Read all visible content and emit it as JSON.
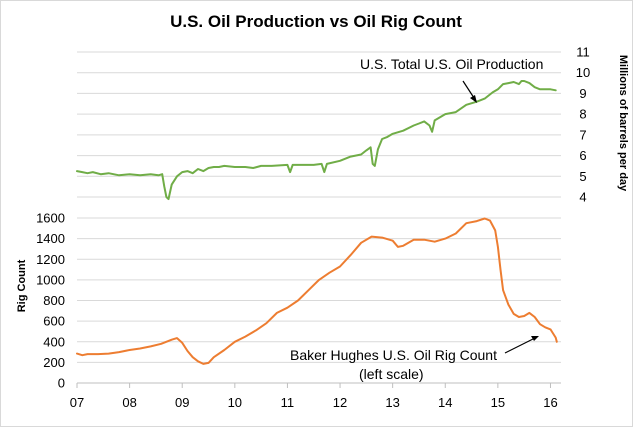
{
  "chart_data": {
    "type": "line",
    "title": "U.S. Oil Production vs Oil Rig Count",
    "x_tick_labels": [
      "07",
      "08",
      "09",
      "10",
      "11",
      "12",
      "13",
      "14",
      "15",
      "16"
    ],
    "x_range": [
      2007,
      2016.2
    ],
    "left_axis": {
      "label": "Rig Count",
      "range": [
        0,
        1600
      ],
      "ticks": [
        0,
        200,
        400,
        600,
        800,
        1000,
        1200,
        1400,
        1600
      ]
    },
    "right_axis": {
      "label": "Millions of barrels per day",
      "range": [
        4,
        11
      ],
      "ticks": [
        4,
        5,
        6,
        7,
        8,
        9,
        10,
        11
      ]
    },
    "series": [
      {
        "name": "U.S. Total U.S. Oil Production",
        "axis": "right",
        "color": "#70ad47",
        "points": [
          [
            2007.0,
            5.25
          ],
          [
            2007.1,
            5.2
          ],
          [
            2007.2,
            5.15
          ],
          [
            2007.3,
            5.2
          ],
          [
            2007.45,
            5.1
          ],
          [
            2007.6,
            5.15
          ],
          [
            2007.8,
            5.05
          ],
          [
            2008.0,
            5.1
          ],
          [
            2008.2,
            5.05
          ],
          [
            2008.4,
            5.1
          ],
          [
            2008.55,
            5.05
          ],
          [
            2008.62,
            5.1
          ],
          [
            2008.66,
            4.5
          ],
          [
            2008.7,
            4.0
          ],
          [
            2008.74,
            3.9
          ],
          [
            2008.8,
            4.6
          ],
          [
            2008.9,
            5.0
          ],
          [
            2009.0,
            5.2
          ],
          [
            2009.1,
            5.25
          ],
          [
            2009.2,
            5.15
          ],
          [
            2009.3,
            5.35
          ],
          [
            2009.4,
            5.25
          ],
          [
            2009.5,
            5.4
          ],
          [
            2009.6,
            5.45
          ],
          [
            2009.7,
            5.45
          ],
          [
            2009.8,
            5.5
          ],
          [
            2010.0,
            5.45
          ],
          [
            2010.2,
            5.45
          ],
          [
            2010.35,
            5.4
          ],
          [
            2010.5,
            5.5
          ],
          [
            2010.7,
            5.5
          ],
          [
            2011.0,
            5.55
          ],
          [
            2011.05,
            5.2
          ],
          [
            2011.1,
            5.55
          ],
          [
            2011.3,
            5.55
          ],
          [
            2011.5,
            5.55
          ],
          [
            2011.65,
            5.6
          ],
          [
            2011.7,
            5.2
          ],
          [
            2011.75,
            5.6
          ],
          [
            2012.0,
            5.75
          ],
          [
            2012.2,
            5.95
          ],
          [
            2012.4,
            6.05
          ],
          [
            2012.5,
            6.25
          ],
          [
            2012.58,
            6.4
          ],
          [
            2012.62,
            5.6
          ],
          [
            2012.66,
            5.5
          ],
          [
            2012.72,
            6.3
          ],
          [
            2012.8,
            6.8
          ],
          [
            2012.9,
            6.9
          ],
          [
            2013.0,
            7.05
          ],
          [
            2013.2,
            7.2
          ],
          [
            2013.4,
            7.45
          ],
          [
            2013.5,
            7.55
          ],
          [
            2013.6,
            7.65
          ],
          [
            2013.7,
            7.45
          ],
          [
            2013.75,
            7.15
          ],
          [
            2013.8,
            7.7
          ],
          [
            2014.0,
            8.0
          ],
          [
            2014.2,
            8.1
          ],
          [
            2014.4,
            8.45
          ],
          [
            2014.6,
            8.6
          ],
          [
            2014.75,
            8.75
          ],
          [
            2014.9,
            9.05
          ],
          [
            2015.0,
            9.2
          ],
          [
            2015.1,
            9.45
          ],
          [
            2015.2,
            9.5
          ],
          [
            2015.3,
            9.55
          ],
          [
            2015.4,
            9.45
          ],
          [
            2015.45,
            9.6
          ],
          [
            2015.5,
            9.6
          ],
          [
            2015.6,
            9.5
          ],
          [
            2015.7,
            9.3
          ],
          [
            2015.8,
            9.2
          ],
          [
            2016.0,
            9.2
          ],
          [
            2016.1,
            9.15
          ]
        ]
      },
      {
        "name": "Baker Hughes U.S. Oil Rig Count (left scale)",
        "axis": "left",
        "color": "#ed7d31",
        "points": [
          [
            2007.0,
            285
          ],
          [
            2007.1,
            270
          ],
          [
            2007.2,
            280
          ],
          [
            2007.4,
            280
          ],
          [
            2007.6,
            285
          ],
          [
            2007.8,
            300
          ],
          [
            2008.0,
            320
          ],
          [
            2008.2,
            335
          ],
          [
            2008.4,
            355
          ],
          [
            2008.6,
            380
          ],
          [
            2008.8,
            420
          ],
          [
            2008.9,
            435
          ],
          [
            2009.0,
            390
          ],
          [
            2009.1,
            310
          ],
          [
            2009.2,
            250
          ],
          [
            2009.3,
            210
          ],
          [
            2009.4,
            185
          ],
          [
            2009.5,
            195
          ],
          [
            2009.6,
            250
          ],
          [
            2009.8,
            320
          ],
          [
            2010.0,
            400
          ],
          [
            2010.2,
            450
          ],
          [
            2010.4,
            510
          ],
          [
            2010.6,
            580
          ],
          [
            2010.8,
            680
          ],
          [
            2011.0,
            730
          ],
          [
            2011.2,
            800
          ],
          [
            2011.4,
            900
          ],
          [
            2011.6,
            1000
          ],
          [
            2011.8,
            1070
          ],
          [
            2012.0,
            1130
          ],
          [
            2012.2,
            1240
          ],
          [
            2012.4,
            1360
          ],
          [
            2012.6,
            1420
          ],
          [
            2012.8,
            1410
          ],
          [
            2013.0,
            1380
          ],
          [
            2013.1,
            1320
          ],
          [
            2013.2,
            1330
          ],
          [
            2013.4,
            1390
          ],
          [
            2013.6,
            1390
          ],
          [
            2013.8,
            1370
          ],
          [
            2014.0,
            1400
          ],
          [
            2014.2,
            1450
          ],
          [
            2014.4,
            1550
          ],
          [
            2014.6,
            1570
          ],
          [
            2014.75,
            1595
          ],
          [
            2014.85,
            1575
          ],
          [
            2014.95,
            1480
          ],
          [
            2015.0,
            1320
          ],
          [
            2015.05,
            1100
          ],
          [
            2015.1,
            900
          ],
          [
            2015.2,
            760
          ],
          [
            2015.3,
            670
          ],
          [
            2015.4,
            640
          ],
          [
            2015.5,
            650
          ],
          [
            2015.6,
            680
          ],
          [
            2015.7,
            640
          ],
          [
            2015.8,
            570
          ],
          [
            2015.9,
            540
          ],
          [
            2016.0,
            520
          ],
          [
            2016.05,
            480
          ],
          [
            2016.1,
            440
          ],
          [
            2016.12,
            400
          ]
        ]
      }
    ],
    "annotations": {
      "production": "U.S. Total U.S. Oil Production",
      "rig_line1": "Baker Hughes U.S. Oil Rig Count",
      "rig_line2": "(left scale)"
    },
    "grid": "horizontal"
  }
}
